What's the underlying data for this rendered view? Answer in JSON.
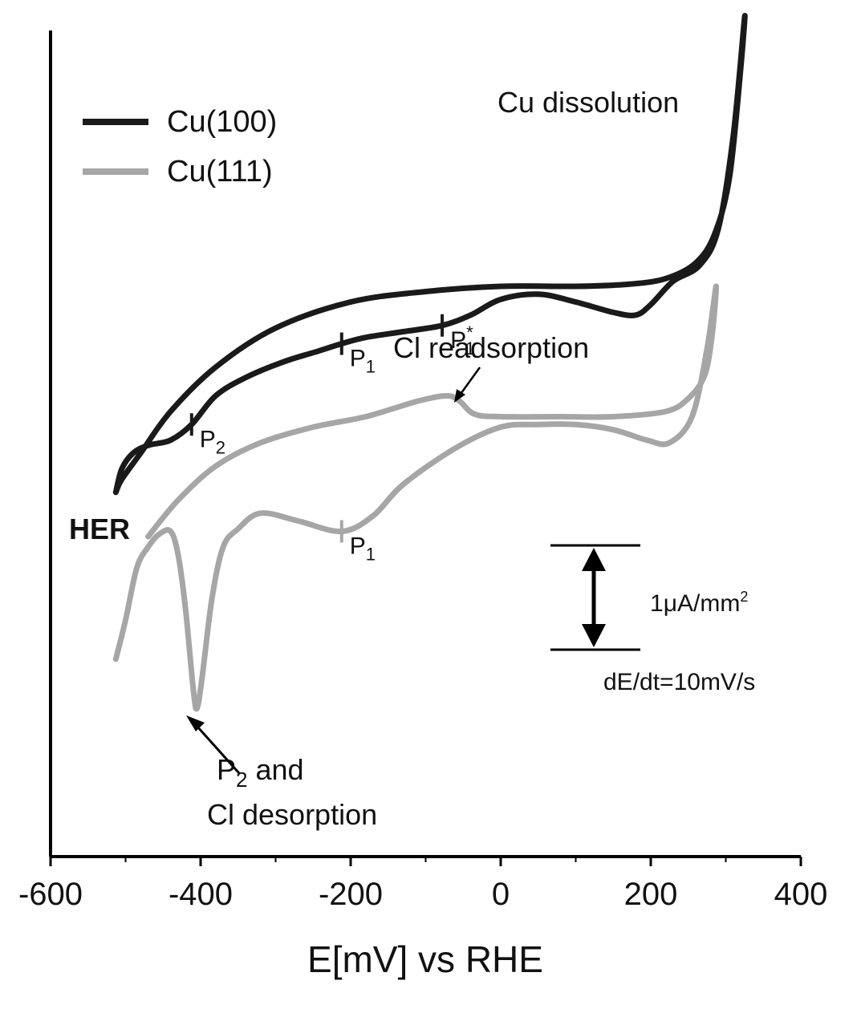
{
  "chart_data": {
    "type": "line",
    "title": "",
    "xlabel": "E[mV] vs RHE",
    "ylabel": "",
    "xlim": [
      -600,
      400
    ],
    "x_ticks": [
      -600,
      -400,
      -200,
      0,
      200,
      400
    ],
    "x_tick_labels": [
      "-600",
      "-400",
      "-200",
      "0",
      "200",
      "400"
    ],
    "y_units": "uA/mm2 (relative, no y tick labels)",
    "grid": false,
    "legend_position": "top-left",
    "colors": {
      "cu100": "#1a1a1a",
      "cu111": "#a6a6a6",
      "axis": "#000000"
    },
    "series": [
      {
        "name": "Cu(100)",
        "color": "#1a1a1a",
        "points": [
          [
            -513,
            0.25
          ],
          [
            -505,
            0.7
          ],
          [
            -490,
            1.0
          ],
          [
            -470,
            1.15
          ],
          [
            -440,
            1.25
          ],
          [
            -412,
            1.55
          ],
          [
            -380,
            2.1
          ],
          [
            -340,
            2.45
          ],
          [
            -290,
            2.75
          ],
          [
            -245,
            2.95
          ],
          [
            -212,
            3.1
          ],
          [
            -180,
            3.22
          ],
          [
            -130,
            3.33
          ],
          [
            -78,
            3.45
          ],
          [
            -40,
            3.65
          ],
          [
            0,
            3.95
          ],
          [
            50,
            4.05
          ],
          [
            100,
            3.9
          ],
          [
            150,
            3.7
          ],
          [
            180,
            3.65
          ],
          [
            200,
            3.85
          ],
          [
            230,
            4.3
          ],
          [
            265,
            4.6
          ],
          [
            290,
            5.3
          ],
          [
            310,
            7.1
          ],
          [
            325,
            9.35
          ],
          [
            320,
            8.4
          ],
          [
            305,
            6.3
          ],
          [
            285,
            5.2
          ],
          [
            260,
            4.65
          ],
          [
            220,
            4.35
          ],
          [
            170,
            4.24
          ],
          [
            100,
            4.2
          ],
          [
            0,
            4.2
          ],
          [
            -100,
            4.1
          ],
          [
            -200,
            3.9
          ],
          [
            -300,
            3.4
          ],
          [
            -380,
            2.65
          ],
          [
            -440,
            1.8
          ],
          [
            -480,
            1.0
          ],
          [
            -505,
            0.5
          ],
          [
            -513,
            0.25
          ]
        ]
      },
      {
        "name": "Cu(111)",
        "color": "#a6a6a6",
        "points": [
          [
            -513,
            -2.95
          ],
          [
            -500,
            -2.2
          ],
          [
            -485,
            -1.2
          ],
          [
            -470,
            -0.8
          ],
          [
            -455,
            -0.55
          ],
          [
            -440,
            -0.5
          ],
          [
            -430,
            -0.95
          ],
          [
            -420,
            -2.0
          ],
          [
            -410,
            -3.5
          ],
          [
            -405,
            -3.9
          ],
          [
            -398,
            -3.3
          ],
          [
            -385,
            -1.8
          ],
          [
            -370,
            -0.8
          ],
          [
            -350,
            -0.45
          ],
          [
            -320,
            -0.15
          ],
          [
            -270,
            -0.3
          ],
          [
            -212,
            -0.5
          ],
          [
            -170,
            -0.2
          ],
          [
            -130,
            0.4
          ],
          [
            -60,
            1.1
          ],
          [
            0,
            1.5
          ],
          [
            50,
            1.55
          ],
          [
            100,
            1.55
          ],
          [
            150,
            1.45
          ],
          [
            195,
            1.25
          ],
          [
            225,
            1.2
          ],
          [
            255,
            1.7
          ],
          [
            275,
            3.0
          ],
          [
            287,
            4.2
          ],
          [
            282,
            3.3
          ],
          [
            272,
            2.5
          ],
          [
            250,
            2.05
          ],
          [
            220,
            1.8
          ],
          [
            150,
            1.7
          ],
          [
            80,
            1.7
          ],
          [
            0,
            1.7
          ],
          [
            -35,
            1.75
          ],
          [
            -55,
            2.0
          ],
          [
            -72,
            2.1
          ],
          [
            -110,
            2.0
          ],
          [
            -180,
            1.7
          ],
          [
            -250,
            1.5
          ],
          [
            -320,
            1.2
          ],
          [
            -380,
            0.75
          ],
          [
            -430,
            0.1
          ],
          [
            -470,
            -0.6
          ]
        ]
      }
    ],
    "markers": [
      {
        "series": "Cu(100)",
        "x": -212,
        "y": 3.1,
        "label": "P",
        "sub": "1",
        "sup": ""
      },
      {
        "series": "Cu(100)",
        "x": -78,
        "y": 3.45,
        "label": "P",
        "sub": "1",
        "sup": "*"
      },
      {
        "series": "Cu(100)",
        "x": -412,
        "y": 1.55,
        "label": "P",
        "sub": "2",
        "sup": ""
      },
      {
        "series": "Cu(111)",
        "x": -212,
        "y": -0.5,
        "label": "P",
        "sub": "1",
        "sup": ""
      }
    ],
    "annotations": {
      "cu_dissolution": "Cu dissolution",
      "cl_readsorption": "Cl readsorption",
      "her": "HER",
      "p2_cl_desorption_line1_base": "P",
      "p2_cl_desorption_line1_sub": "2",
      "p2_cl_desorption_line1_rest": " and",
      "p2_cl_desorption_line2": "Cl desorption",
      "scale_bar_label_prefix": "1",
      "scale_bar_label_mu": "μ",
      "scale_bar_label_unit": "A/mm",
      "scale_bar_label_exp": "2",
      "scale_bar_value_uA_per_mm2": 1,
      "scan_rate": "dE/dt=10mV/s"
    }
  }
}
